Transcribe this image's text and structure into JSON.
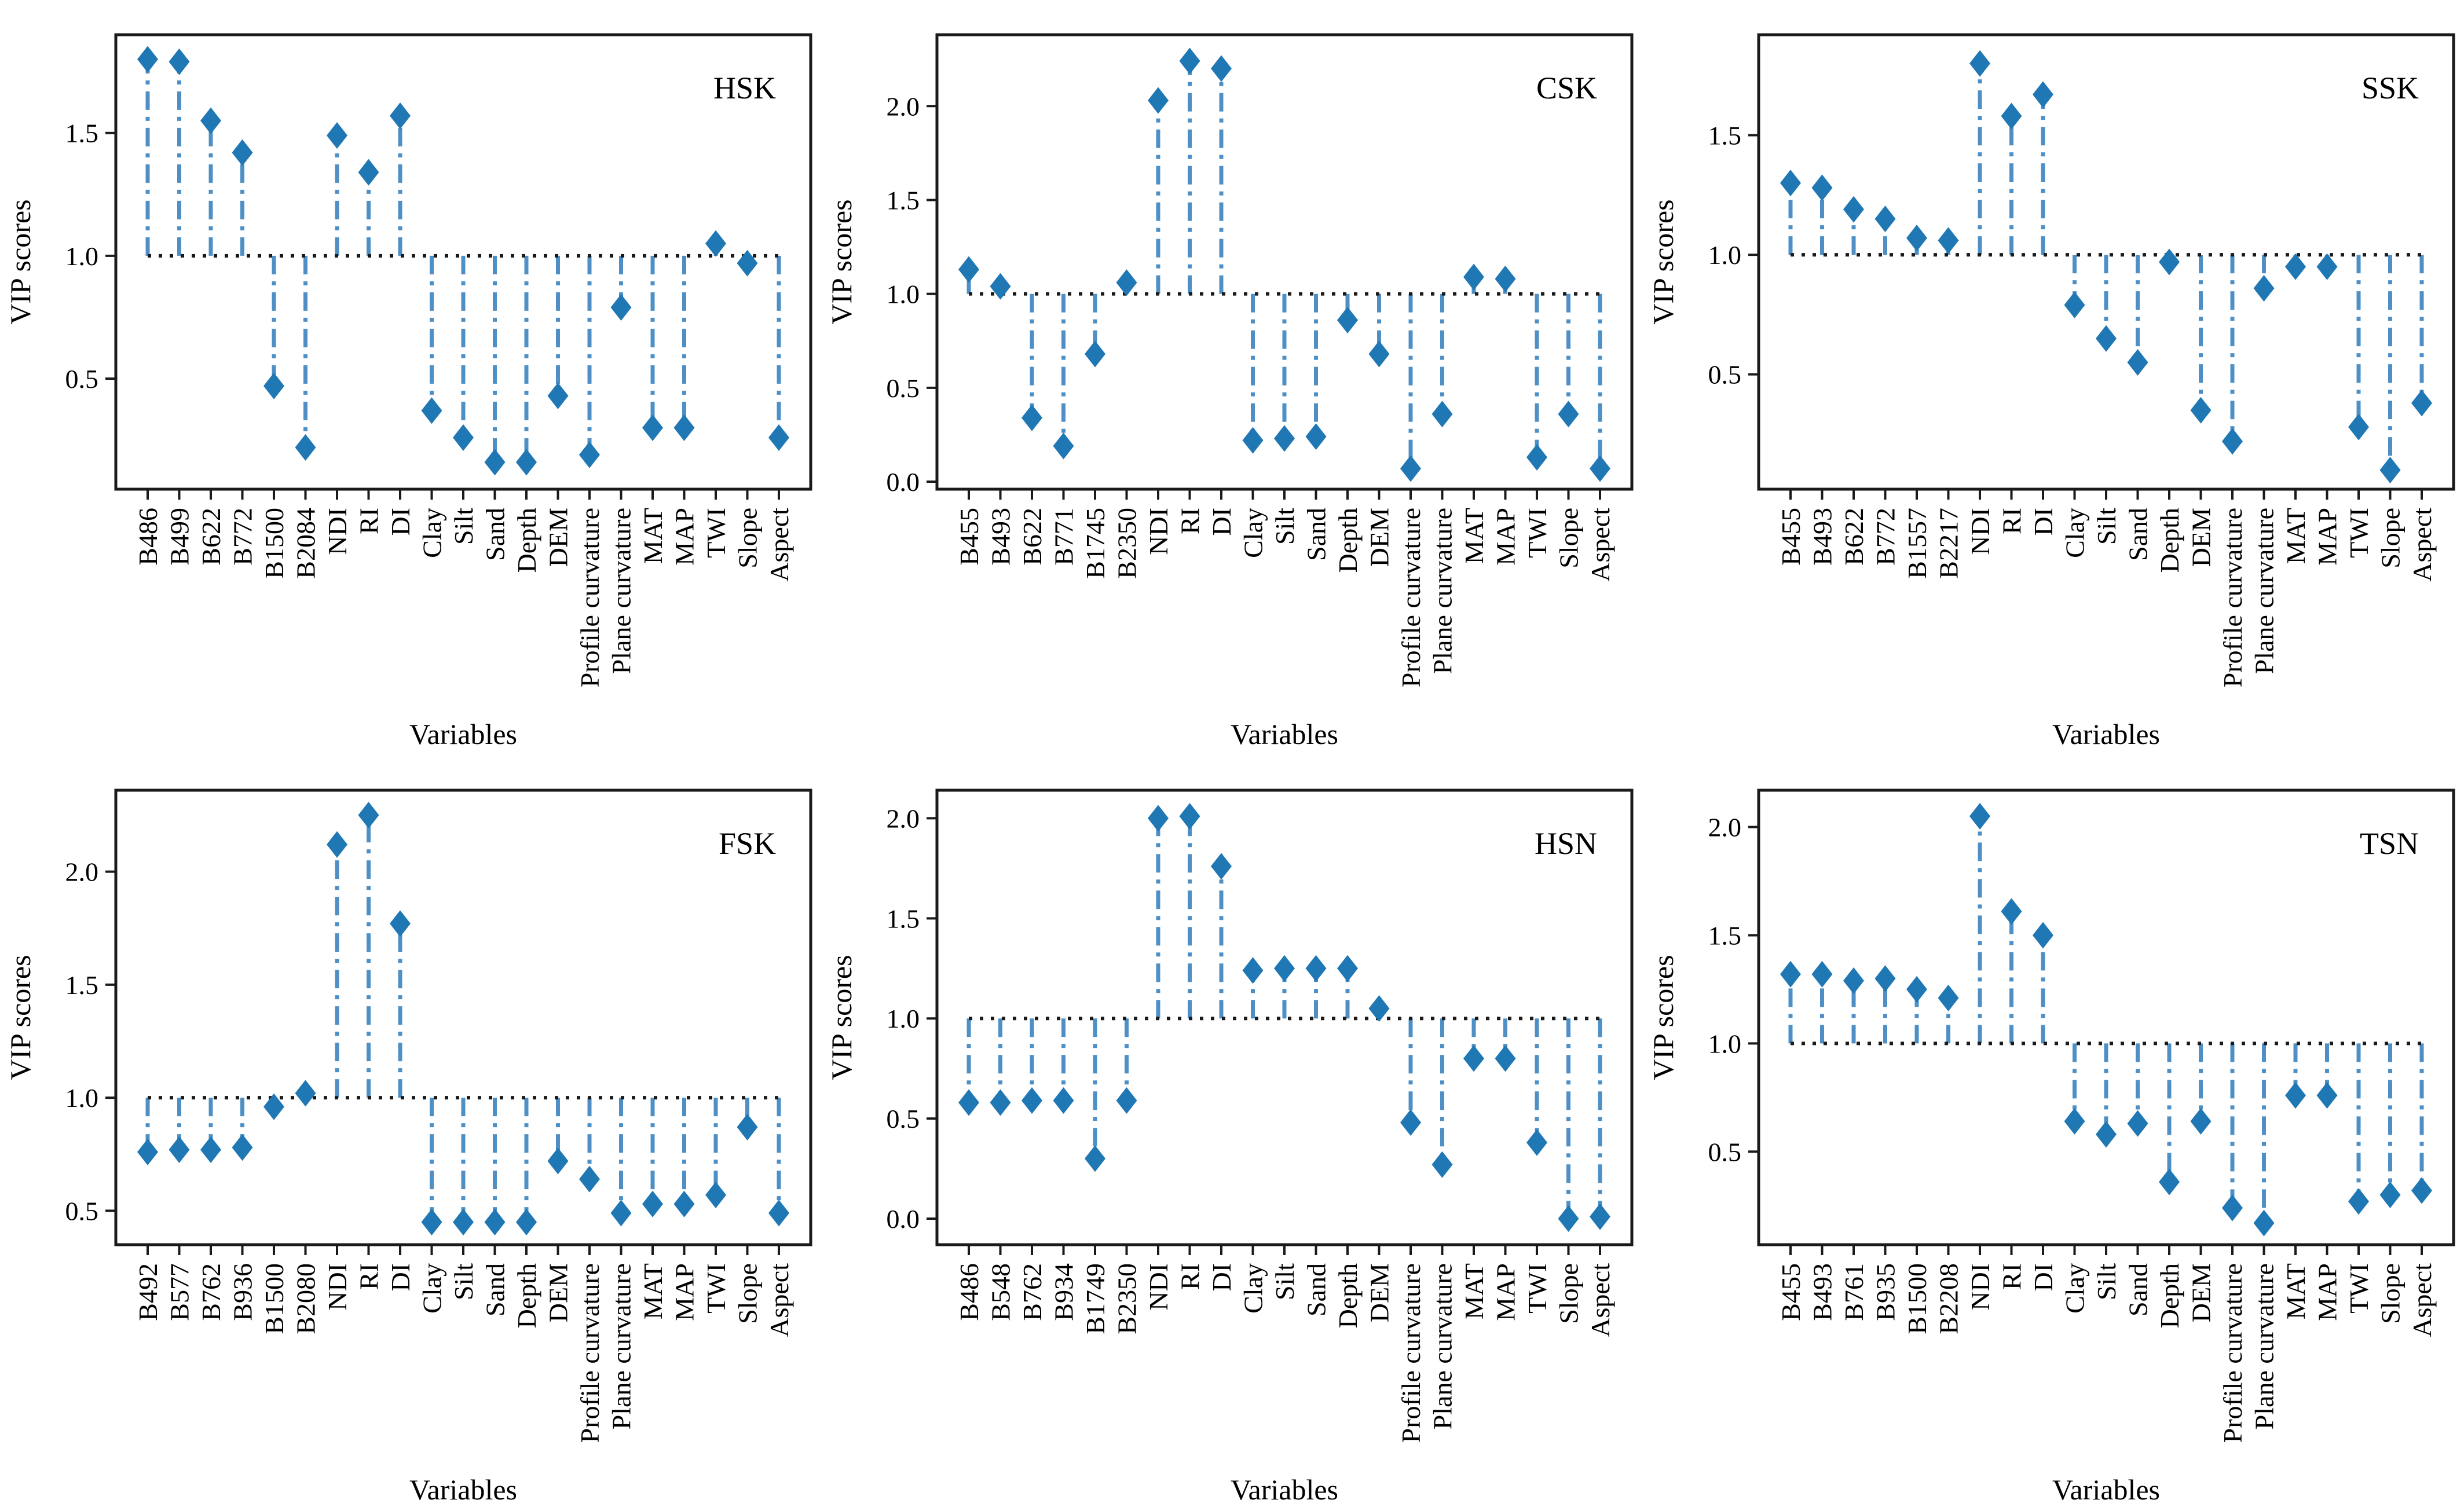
{
  "figure": {
    "ylabel": "VIP scores",
    "xlabel": "Variables",
    "baseline_value": 1.0,
    "colors": {
      "stem": "#4e90c6",
      "marker": "#1f77b4",
      "baseline": "#1a1a1a",
      "axis": "#1a1a1a",
      "text": "#000000"
    }
  },
  "chart_data": [
    {
      "type": "stem",
      "title": "HSK",
      "xlabel": "Variables",
      "ylabel": "VIP scores",
      "baseline": 1.0,
      "yticks": [
        0.5,
        1.0,
        1.5
      ],
      "ylim": [
        0.05,
        1.9
      ],
      "categories": [
        "B486",
        "B499",
        "B622",
        "B772",
        "B1500",
        "B2084",
        "NDI",
        "RI",
        "DI",
        "Clay",
        "Silt",
        "Sand",
        "Depth",
        "DEM",
        "Profile curvature",
        "Plane curvature",
        "MAT",
        "MAP",
        "TWI",
        "Slope",
        "Aspect"
      ],
      "values": [
        1.8,
        1.79,
        1.55,
        1.42,
        0.47,
        0.22,
        1.49,
        1.34,
        1.57,
        0.37,
        0.26,
        0.16,
        0.16,
        0.43,
        0.19,
        0.79,
        0.3,
        0.3,
        1.05,
        0.97,
        0.26
      ]
    },
    {
      "type": "stem",
      "title": "CSK",
      "xlabel": "Variables",
      "ylabel": "VIP scores",
      "baseline": 1.0,
      "yticks": [
        0.0,
        0.5,
        1.0,
        1.5,
        2.0
      ],
      "ylim": [
        -0.04,
        2.38
      ],
      "categories": [
        "B455",
        "B493",
        "B622",
        "B771",
        "B1745",
        "B2350",
        "NDI",
        "RI",
        "DI",
        "Clay",
        "Silt",
        "Sand",
        "Depth",
        "DEM",
        "Profile curvature",
        "Plane curvature",
        "MAT",
        "MAP",
        "TWI",
        "Slope",
        "Aspect"
      ],
      "values": [
        1.13,
        1.04,
        0.34,
        0.19,
        0.68,
        1.06,
        2.03,
        2.24,
        2.2,
        0.22,
        0.23,
        0.24,
        0.86,
        0.68,
        0.07,
        0.36,
        1.09,
        1.08,
        0.13,
        0.36,
        0.07
      ]
    },
    {
      "type": "stem",
      "title": "SSK",
      "xlabel": "Variables",
      "ylabel": "VIP scores",
      "baseline": 1.0,
      "yticks": [
        0.5,
        1.0,
        1.5
      ],
      "ylim": [
        0.02,
        1.92
      ],
      "categories": [
        "B455",
        "B493",
        "B622",
        "B772",
        "B1557",
        "B2217",
        "NDI",
        "RI",
        "DI",
        "Clay",
        "Silt",
        "Sand",
        "Depth",
        "DEM",
        "Profile curvature",
        "Plane curvature",
        "MAT",
        "MAP",
        "TWI",
        "Slope",
        "Aspect"
      ],
      "values": [
        1.3,
        1.28,
        1.19,
        1.15,
        1.07,
        1.06,
        1.8,
        1.58,
        1.67,
        0.79,
        0.65,
        0.55,
        0.97,
        0.35,
        0.22,
        0.86,
        0.95,
        0.95,
        0.28,
        0.1,
        0.38
      ]
    },
    {
      "type": "stem",
      "title": "FSK",
      "xlabel": "Variables",
      "ylabel": "VIP scores",
      "baseline": 1.0,
      "yticks": [
        0.5,
        1.0,
        1.5,
        2.0
      ],
      "ylim": [
        0.35,
        2.36
      ],
      "categories": [
        "B492",
        "B577",
        "B762",
        "B936",
        "B1500",
        "B2080",
        "NDI",
        "RI",
        "DI",
        "Clay",
        "Silt",
        "Sand",
        "Depth",
        "DEM",
        "Profile curvature",
        "Plane curvature",
        "MAT",
        "MAP",
        "TWI",
        "Slope",
        "Aspect"
      ],
      "values": [
        0.76,
        0.77,
        0.77,
        0.78,
        0.96,
        1.02,
        2.12,
        2.25,
        1.77,
        0.45,
        0.45,
        0.45,
        0.45,
        0.72,
        0.64,
        0.49,
        0.53,
        0.53,
        0.57,
        0.87,
        0.49
      ]
    },
    {
      "type": "stem",
      "title": "HSN",
      "xlabel": "Variables",
      "ylabel": "VIP scores",
      "baseline": 1.0,
      "yticks": [
        0.0,
        0.5,
        1.0,
        1.5,
        2.0
      ],
      "ylim": [
        -0.13,
        2.14
      ],
      "categories": [
        "B486",
        "B548",
        "B762",
        "B934",
        "B1749",
        "B2350",
        "NDI",
        "RI",
        "DI",
        "Clay",
        "Silt",
        "Sand",
        "Depth",
        "DEM",
        "Profile curvature",
        "Plane curvature",
        "MAT",
        "MAP",
        "TWI",
        "Slope",
        "Aspect"
      ],
      "values": [
        0.58,
        0.58,
        0.59,
        0.59,
        0.3,
        0.59,
        2.0,
        2.01,
        1.76,
        1.24,
        1.25,
        1.25,
        1.25,
        1.05,
        0.48,
        0.27,
        0.8,
        0.8,
        0.38,
        0.0,
        0.01
      ]
    },
    {
      "type": "stem",
      "title": "TSN",
      "xlabel": "Variables",
      "ylabel": "VIP scores",
      "baseline": 1.0,
      "yticks": [
        0.5,
        1.0,
        1.5,
        2.0
      ],
      "ylim": [
        0.07,
        2.17
      ],
      "categories": [
        "B455",
        "B493",
        "B761",
        "B935",
        "B1500",
        "B2208",
        "NDI",
        "RI",
        "DI",
        "Clay",
        "Silt",
        "Sand",
        "Depth",
        "DEM",
        "Profile curvature",
        "Plane curvature",
        "MAT",
        "MAP",
        "TWI",
        "Slope",
        "Aspect"
      ],
      "values": [
        1.32,
        1.32,
        1.29,
        1.3,
        1.25,
        1.21,
        2.05,
        1.61,
        1.5,
        0.64,
        0.58,
        0.63,
        0.36,
        0.64,
        0.24,
        0.17,
        0.76,
        0.76,
        0.27,
        0.3,
        0.32
      ]
    }
  ]
}
